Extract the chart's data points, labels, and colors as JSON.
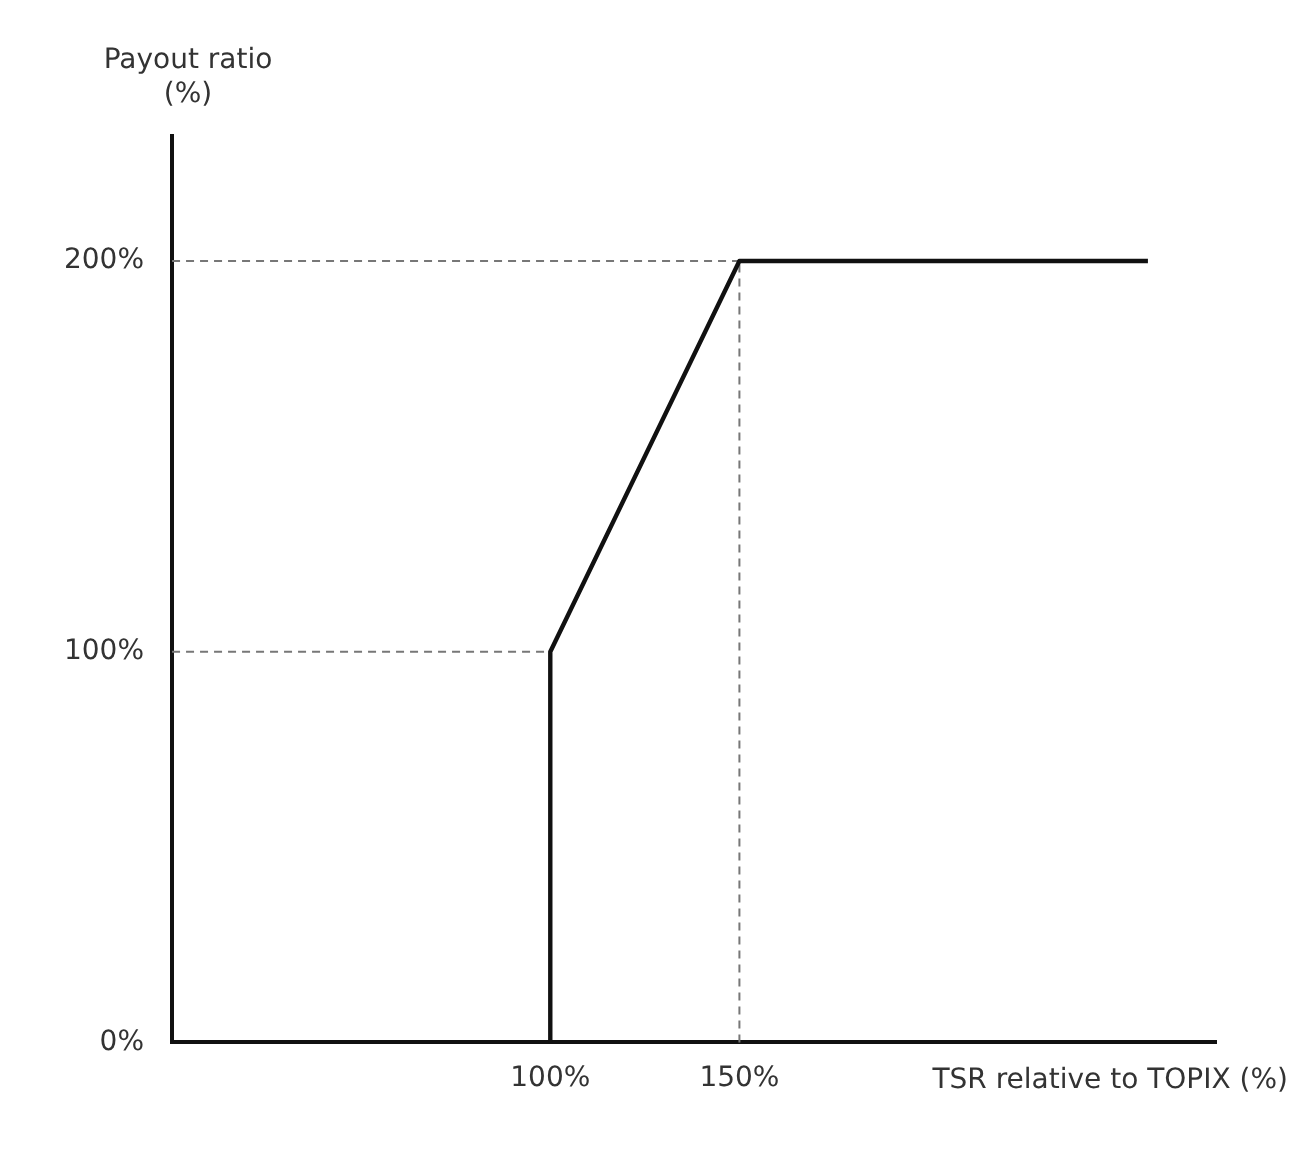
{
  "chart_data": {
    "type": "line",
    "xlabel": "TSR relative to TOPIX (%)",
    "ylabel": "Payout ratio\n(%)",
    "x": [
      100,
      100,
      150,
      258
    ],
    "series": [
      {
        "color": "#111111",
        "values": [
          0,
          100,
          200,
          200
        ]
      }
    ],
    "xlim": [
      0,
      276
    ],
    "ylim": [
      0,
      232
    ],
    "xticks": [
      {
        "value": 100,
        "label": "100%"
      },
      {
        "value": 150,
        "label": "150%"
      }
    ],
    "yticks": [
      {
        "value": 0,
        "label": "0%"
      },
      {
        "value": 100,
        "label": "100%"
      },
      {
        "value": 200,
        "label": "200%"
      }
    ],
    "ref_lines": [
      {
        "axis": "y",
        "value": 100,
        "line_style": "dashed",
        "color": "#777777"
      },
      {
        "axis": "y",
        "value": 200,
        "line_style": "dashed",
        "color": "#777777"
      },
      {
        "axis": "x",
        "value": 150,
        "line_style": "dashed",
        "color": "#777777"
      }
    ],
    "grid": false,
    "legend": false,
    "marker": "none",
    "line_style": "solid"
  }
}
